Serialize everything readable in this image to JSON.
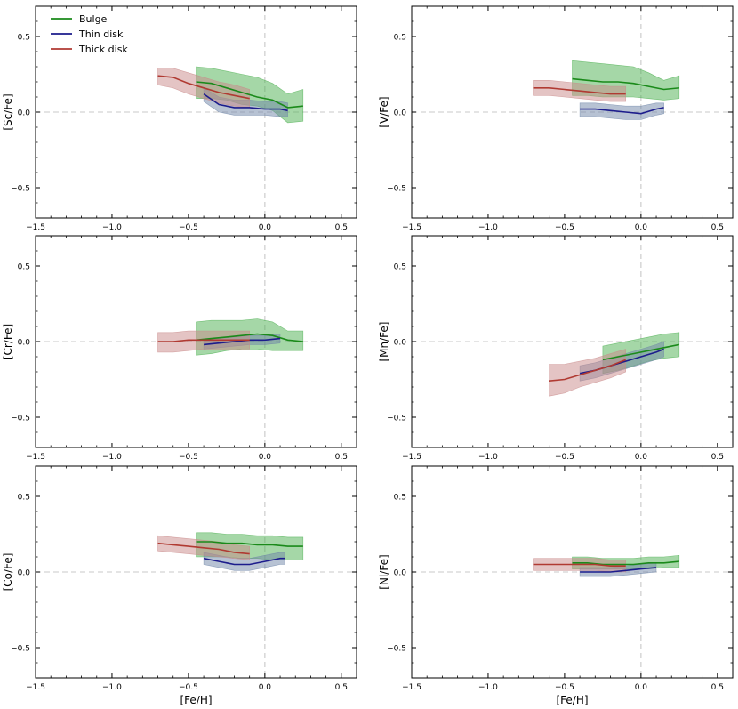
{
  "chart_data": {
    "type": "line",
    "description_free": true,
    "shared": {
      "xlabel": "[Fe/H]",
      "xlim": [
        -1.5,
        0.6
      ],
      "ylim": [
        -0.7,
        0.7
      ],
      "xticks": [
        -1.5,
        -1.0,
        -0.5,
        0.0,
        0.5
      ],
      "xtick_labels": [
        "−1.5",
        "−1.0",
        "−0.5",
        "0.0",
        "0.5"
      ],
      "yticks": [
        -0.5,
        0.0,
        0.5
      ],
      "ytick_labels": [
        "−0.5",
        "0.0",
        "0.5"
      ],
      "reference_lines": {
        "x": 0.0,
        "y": 0.0
      },
      "legend": {
        "placement": "top-left of first panel",
        "entries": [
          {
            "label": "Bulge",
            "color": "#1a8a1a"
          },
          {
            "label": "Thin disk",
            "color": "#1c1c8c"
          },
          {
            "label": "Thick disk",
            "color": "#b03a32"
          }
        ]
      },
      "band_colors": {
        "Bulge": "#4caf50",
        "Thin disk": "#6f86a8",
        "Thick disk": "#c98a8a"
      }
    },
    "panels": [
      {
        "ylabel": "[Sc/Fe]",
        "series": [
          {
            "name": "Bulge",
            "x": [
              -0.45,
              -0.35,
              -0.25,
              -0.15,
              -0.05,
              0.05,
              0.15,
              0.25
            ],
            "y": [
              0.2,
              0.19,
              0.16,
              0.13,
              0.1,
              0.08,
              0.03,
              0.04
            ],
            "lo": [
              0.09,
              0.09,
              0.08,
              0.05,
              0.04,
              0.01,
              -0.07,
              -0.06
            ],
            "hi": [
              0.3,
              0.29,
              0.27,
              0.25,
              0.23,
              0.19,
              0.12,
              0.15
            ]
          },
          {
            "name": "Thin disk",
            "x": [
              -0.4,
              -0.3,
              -0.2,
              -0.1,
              0.0,
              0.1,
              0.15
            ],
            "y": [
              0.12,
              0.05,
              0.03,
              0.03,
              0.02,
              0.02,
              0.01
            ],
            "lo": [
              0.07,
              0.0,
              -0.02,
              -0.02,
              -0.02,
              -0.03,
              -0.03
            ],
            "hi": [
              0.16,
              0.1,
              0.08,
              0.08,
              0.07,
              0.07,
              0.06
            ]
          },
          {
            "name": "Thick disk",
            "x": [
              -0.7,
              -0.6,
              -0.5,
              -0.4,
              -0.3,
              -0.2,
              -0.1
            ],
            "y": [
              0.24,
              0.23,
              0.19,
              0.16,
              0.13,
              0.11,
              0.09
            ],
            "lo": [
              0.18,
              0.16,
              0.12,
              0.09,
              0.06,
              0.04,
              0.03
            ],
            "hi": [
              0.29,
              0.29,
              0.26,
              0.23,
              0.2,
              0.18,
              0.15
            ]
          }
        ]
      },
      {
        "ylabel": "[V/Fe]",
        "series": [
          {
            "name": "Bulge",
            "x": [
              -0.45,
              -0.35,
              -0.25,
              -0.15,
              -0.05,
              0.05,
              0.15,
              0.25
            ],
            "y": [
              0.22,
              0.21,
              0.2,
              0.2,
              0.19,
              0.17,
              0.15,
              0.16
            ],
            "lo": [
              0.11,
              0.11,
              0.1,
              0.1,
              0.1,
              0.09,
              0.08,
              0.09
            ],
            "hi": [
              0.34,
              0.33,
              0.32,
              0.31,
              0.3,
              0.26,
              0.21,
              0.24
            ]
          },
          {
            "name": "Thin disk",
            "x": [
              -0.4,
              -0.3,
              -0.2,
              -0.1,
              0.0,
              0.1,
              0.15
            ],
            "y": [
              0.02,
              0.02,
              0.01,
              0.0,
              -0.01,
              0.02,
              0.03
            ],
            "lo": [
              -0.03,
              -0.03,
              -0.04,
              -0.05,
              -0.05,
              -0.02,
              -0.01
            ],
            "hi": [
              0.06,
              0.06,
              0.05,
              0.04,
              0.04,
              0.06,
              0.06
            ]
          },
          {
            "name": "Thick disk",
            "x": [
              -0.7,
              -0.6,
              -0.5,
              -0.4,
              -0.3,
              -0.2,
              -0.1
            ],
            "y": [
              0.16,
              0.16,
              0.15,
              0.14,
              0.13,
              0.12,
              0.12
            ],
            "lo": [
              0.11,
              0.11,
              0.1,
              0.09,
              0.08,
              0.07,
              0.07
            ],
            "hi": [
              0.21,
              0.21,
              0.2,
              0.19,
              0.18,
              0.17,
              0.17
            ]
          }
        ]
      },
      {
        "ylabel": "[Cr/Fe]",
        "series": [
          {
            "name": "Bulge",
            "x": [
              -0.45,
              -0.35,
              -0.25,
              -0.15,
              -0.05,
              0.05,
              0.15,
              0.25
            ],
            "y": [
              0.01,
              0.02,
              0.03,
              0.04,
              0.05,
              0.04,
              0.01,
              0.0
            ],
            "lo": [
              -0.09,
              -0.08,
              -0.06,
              -0.05,
              -0.05,
              -0.06,
              -0.06,
              -0.06
            ],
            "hi": [
              0.13,
              0.14,
              0.14,
              0.14,
              0.15,
              0.13,
              0.07,
              0.07
            ]
          },
          {
            "name": "Thin disk",
            "x": [
              -0.4,
              -0.3,
              -0.2,
              -0.1,
              0.0,
              0.1
            ],
            "y": [
              -0.02,
              -0.01,
              0.0,
              0.01,
              0.01,
              0.02
            ],
            "lo": [
              -0.05,
              -0.04,
              -0.03,
              -0.02,
              -0.02,
              -0.01
            ],
            "hi": [
              0.01,
              0.02,
              0.03,
              0.04,
              0.04,
              0.05
            ]
          },
          {
            "name": "Thick disk",
            "x": [
              -0.7,
              -0.6,
              -0.5,
              -0.4,
              -0.3,
              -0.2,
              -0.1
            ],
            "y": [
              0.0,
              0.0,
              0.01,
              0.01,
              0.01,
              0.01,
              0.01
            ],
            "lo": [
              -0.07,
              -0.07,
              -0.06,
              -0.05,
              -0.05,
              -0.05,
              -0.05
            ],
            "hi": [
              0.06,
              0.06,
              0.07,
              0.07,
              0.07,
              0.07,
              0.07
            ]
          }
        ]
      },
      {
        "ylabel": "[Mn/Fe]",
        "series": [
          {
            "name": "Bulge",
            "x": [
              -0.25,
              -0.15,
              -0.05,
              0.05,
              0.15,
              0.25
            ],
            "y": [
              -0.12,
              -0.1,
              -0.08,
              -0.06,
              -0.04,
              -0.02
            ],
            "lo": [
              -0.21,
              -0.19,
              -0.16,
              -0.13,
              -0.11,
              -0.1
            ],
            "hi": [
              -0.03,
              -0.01,
              0.01,
              0.03,
              0.05,
              0.06
            ]
          },
          {
            "name": "Thin disk",
            "x": [
              -0.4,
              -0.3,
              -0.2,
              -0.1,
              0.0,
              0.1,
              0.15
            ],
            "y": [
              -0.21,
              -0.19,
              -0.16,
              -0.13,
              -0.1,
              -0.07,
              -0.05
            ],
            "lo": [
              -0.26,
              -0.24,
              -0.21,
              -0.18,
              -0.15,
              -0.12,
              -0.1
            ],
            "hi": [
              -0.16,
              -0.14,
              -0.11,
              -0.08,
              -0.05,
              -0.02,
              0.0
            ]
          },
          {
            "name": "Thick disk",
            "x": [
              -0.6,
              -0.5,
              -0.4,
              -0.3,
              -0.2,
              -0.1
            ],
            "y": [
              -0.26,
              -0.25,
              -0.22,
              -0.19,
              -0.16,
              -0.12
            ],
            "lo": [
              -0.36,
              -0.34,
              -0.3,
              -0.27,
              -0.24,
              -0.2
            ],
            "hi": [
              -0.15,
              -0.15,
              -0.13,
              -0.11,
              -0.08,
              -0.05
            ]
          }
        ]
      },
      {
        "ylabel": "[Co/Fe]",
        "series": [
          {
            "name": "Bulge",
            "x": [
              -0.45,
              -0.35,
              -0.25,
              -0.15,
              -0.05,
              0.05,
              0.15,
              0.25
            ],
            "y": [
              0.2,
              0.2,
              0.19,
              0.19,
              0.18,
              0.18,
              0.17,
              0.17
            ],
            "lo": [
              0.1,
              0.1,
              0.1,
              0.09,
              0.09,
              0.08,
              0.08,
              0.08
            ],
            "hi": [
              0.26,
              0.26,
              0.25,
              0.25,
              0.24,
              0.24,
              0.23,
              0.23
            ]
          },
          {
            "name": "Thin disk",
            "x": [
              -0.4,
              -0.3,
              -0.2,
              -0.1,
              0.0,
              0.1,
              0.13
            ],
            "y": [
              0.09,
              0.07,
              0.05,
              0.05,
              0.07,
              0.09,
              0.09
            ],
            "lo": [
              0.05,
              0.03,
              0.01,
              0.01,
              0.03,
              0.05,
              0.05
            ],
            "hi": [
              0.13,
              0.11,
              0.09,
              0.09,
              0.11,
              0.13,
              0.13
            ]
          },
          {
            "name": "Thick disk",
            "x": [
              -0.7,
              -0.6,
              -0.5,
              -0.4,
              -0.3,
              -0.2,
              -0.1
            ],
            "y": [
              0.19,
              0.18,
              0.17,
              0.16,
              0.15,
              0.13,
              0.12
            ],
            "lo": [
              0.14,
              0.13,
              0.12,
              0.11,
              0.1,
              0.09,
              0.08
            ],
            "hi": [
              0.24,
              0.23,
              0.22,
              0.21,
              0.2,
              0.18,
              0.17
            ]
          }
        ]
      },
      {
        "ylabel": "[Ni/Fe]",
        "series": [
          {
            "name": "Bulge",
            "x": [
              -0.45,
              -0.35,
              -0.25,
              -0.15,
              -0.05,
              0.05,
              0.15,
              0.25
            ],
            "y": [
              0.06,
              0.06,
              0.05,
              0.05,
              0.05,
              0.06,
              0.06,
              0.07
            ],
            "lo": [
              0.02,
              0.02,
              0.02,
              0.02,
              0.02,
              0.02,
              0.03,
              0.03
            ],
            "hi": [
              0.1,
              0.1,
              0.09,
              0.09,
              0.09,
              0.1,
              0.1,
              0.11
            ]
          },
          {
            "name": "Thin disk",
            "x": [
              -0.4,
              -0.3,
              -0.2,
              -0.1,
              0.0,
              0.1
            ],
            "y": [
              0.0,
              0.0,
              0.0,
              0.01,
              0.02,
              0.03
            ],
            "lo": [
              -0.03,
              -0.03,
              -0.03,
              -0.02,
              -0.01,
              0.0
            ],
            "hi": [
              0.03,
              0.03,
              0.03,
              0.04,
              0.05,
              0.06
            ]
          },
          {
            "name": "Thick disk",
            "x": [
              -0.7,
              -0.6,
              -0.5,
              -0.4,
              -0.3,
              -0.2,
              -0.1
            ],
            "y": [
              0.05,
              0.05,
              0.05,
              0.05,
              0.05,
              0.04,
              0.04
            ],
            "lo": [
              0.01,
              0.01,
              0.01,
              0.01,
              0.01,
              0.0,
              0.0
            ],
            "hi": [
              0.09,
              0.09,
              0.09,
              0.09,
              0.09,
              0.08,
              0.08
            ]
          }
        ]
      }
    ]
  }
}
